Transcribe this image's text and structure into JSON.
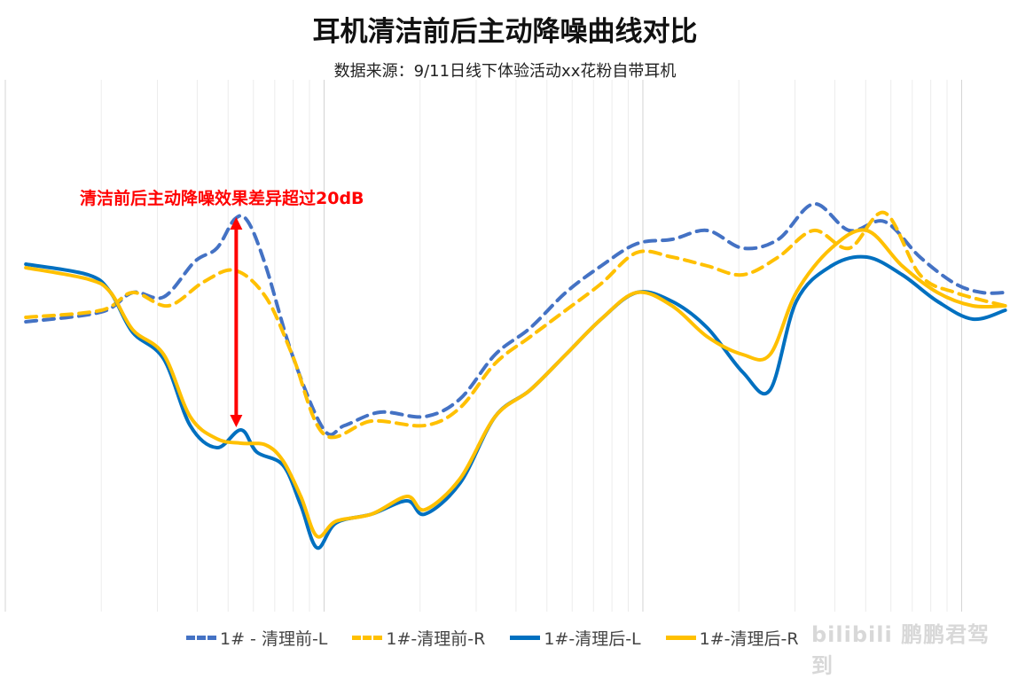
{
  "chart_data": {
    "type": "line",
    "title": "耳机清洁前后主动降噪曲线对比",
    "subtitle": "数据来源：9/11日线下体验活动xx花粉自带耳机",
    "xlabel": "",
    "ylabel": "",
    "x_scale": "log",
    "xlim": [
      10,
      14000
    ],
    "ylim": [
      -30,
      30
    ],
    "grid": {
      "vertical": true,
      "horizontal": false
    },
    "legend": "bottom",
    "annotation": {
      "text": "清洁前后主动降噪效果差异超过20dB",
      "color": "#FF0000",
      "arrow_x": 53,
      "arrow_y": [
        14.5,
        -9.2
      ]
    },
    "series": [
      {
        "name": "1# - 清理前-L",
        "color": "#4472C4",
        "style": "dashed",
        "x": [
          11.6,
          20,
          25.1,
          31.4,
          39.3,
          46.1,
          52.5,
          57.7,
          65.6,
          79.4,
          100,
          116,
          150,
          207,
          267,
          344,
          443,
          573,
          740,
          956,
          1235,
          1594,
          2059,
          2660,
          3438,
          4440,
          5730,
          7400,
          9540,
          11600,
          13700
        ],
        "y": [
          2.7,
          3.8,
          6,
          5.5,
          9.5,
          11,
          14.3,
          14,
          9,
          -1,
          -9.5,
          -9,
          -7.5,
          -8,
          -6,
          -1,
          2,
          6,
          9,
          11.5,
          12,
          13,
          11,
          12,
          16,
          13,
          14,
          10,
          7,
          6,
          6
        ]
      },
      {
        "name": "1#-清理前-R",
        "color": "#FFC000",
        "style": "dashed",
        "x": [
          11.6,
          20,
          25.1,
          32.4,
          41.9,
          52.5,
          65.6,
          79.4,
          100,
          141,
          207,
          267,
          344,
          443,
          573,
          740,
          956,
          1235,
          1594,
          2059,
          2660,
          3438,
          4440,
          5730,
          7400,
          9540,
          13700
        ],
        "y": [
          3.2,
          4,
          6,
          4.5,
          7.2,
          8.5,
          5.5,
          -1,
          -10,
          -8.5,
          -9,
          -7,
          -2,
          1,
          4,
          7,
          10.5,
          10,
          9,
          8,
          10,
          13,
          11,
          15,
          8,
          6,
          4.5
        ]
      },
      {
        "name": "1#-清理后-L",
        "color": "#0070C0",
        "style": "solid",
        "x": [
          11.6,
          18.2,
          21.4,
          25.1,
          31.4,
          38,
          46.1,
          54.9,
          61.5,
          74.4,
          84.5,
          95,
          109,
          141,
          182,
          207,
          267,
          344,
          443,
          573,
          740,
          956,
          1235,
          1594,
          2059,
          2505,
          3029,
          3900,
          5040,
          6510,
          8400,
          10840,
          13700
        ],
        "y": [
          9.2,
          8,
          6,
          1.5,
          -1.5,
          -9,
          -11.5,
          -9.5,
          -12,
          -13.5,
          -18,
          -22.8,
          -20,
          -19,
          -17.5,
          -19,
          -15.5,
          -8,
          -5,
          -1,
          3,
          6,
          5,
          2,
          -3,
          -5,
          5,
          9,
          10,
          8,
          5,
          3,
          4
        ]
      },
      {
        "name": "1#-清理后-R",
        "color": "#FFC000",
        "style": "solid",
        "x": [
          11.6,
          18.2,
          21.4,
          25.1,
          31.4,
          38,
          46.1,
          54.9,
          65.6,
          74.4,
          84.5,
          95,
          109,
          141,
          182,
          207,
          267,
          344,
          443,
          573,
          740,
          956,
          1235,
          1594,
          2059,
          2505,
          3029,
          3900,
          5040,
          6510,
          8400,
          10840,
          13700
        ],
        "y": [
          8.8,
          7.5,
          6,
          1.8,
          -1,
          -8,
          -10.5,
          -11,
          -11.2,
          -13,
          -17,
          -21.5,
          -19.8,
          -19,
          -17,
          -18.5,
          -15,
          -8,
          -5,
          -1,
          3,
          6,
          4.5,
          1,
          -1,
          -1,
          6,
          11,
          13,
          9,
          6,
          4.5,
          4.5
        ]
      }
    ]
  },
  "watermark": "bilibili 鹏鹏君驾到"
}
